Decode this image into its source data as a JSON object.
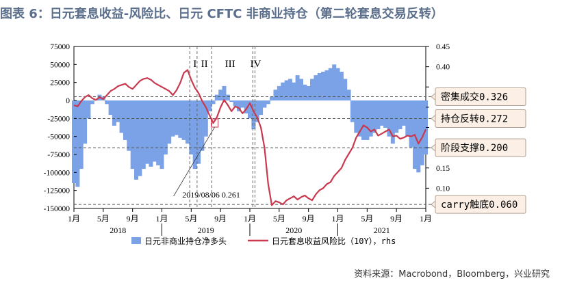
{
  "title": "图表 6：日元套息收益-风险比、日元 CFTC 非商业持仓（第二轮套息交易反转）",
  "source": "资料来源：Macrobond，Bloomberg，兴业研究",
  "colors": {
    "bar": "#7ba2e6",
    "line": "#c8384e",
    "title": "#5b6f8c"
  },
  "chart_data": {
    "type": "bar",
    "title": "图表 6：日元套息收益-风险比、日元 CFTC 非商业持仓（第二轮套息交易反转）",
    "x_tick_labels": [
      "1月",
      "5月",
      "9月",
      "1月",
      "5月",
      "9月",
      "1月",
      "5月",
      "9月",
      "1月",
      "5月",
      "9月",
      "1月"
    ],
    "year_labels": [
      "2018",
      "2019",
      "2020",
      "2021"
    ],
    "ylim_left": [
      -150000,
      75000
    ],
    "ylim_right": [
      0.05,
      0.45
    ],
    "left_ticks": [
      75000,
      50000,
      25000,
      0,
      -25000,
      -50000,
      -75000,
      -100000,
      -125000,
      -150000
    ],
    "left_tick_labels": [
      "75000",
      "50000",
      "25000",
      "0",
      "-25000",
      "-50000",
      "-75000",
      "-100000",
      "-125000",
      "-150000"
    ],
    "right_ticks": [
      0.45,
      0.4,
      0.35,
      0.3,
      0.25,
      0.2,
      0.15,
      0.1
    ],
    "right_tick_labels": [
      "0.45",
      "0.40",
      "",
      "",
      "",
      "",
      "0.15",
      "0.10"
    ],
    "legend": [
      "日元非商业持仓净多头",
      "日元套息收益风险比（10Y），rhs"
    ],
    "phase_labels": [
      "I",
      "II",
      "III",
      "IV"
    ],
    "phase_lines_month": [
      15.8,
      16.8,
      18.8,
      24.4,
      24.7
    ],
    "phase_label_month": [
      16.5,
      17.8,
      21.3,
      24.8
    ],
    "thresholds": [
      {
        "label": "密集成交0.326",
        "value": 0.326
      },
      {
        "label": "持仓反转0.272",
        "value": 0.272
      },
      {
        "label": "阶段支撑0.200",
        "value": 0.2
      },
      {
        "label": "carry触底0.060",
        "value": 0.06
      }
    ],
    "annotation": {
      "text": "2019/08/06  0.261",
      "month": 19.2,
      "value": 0.261
    },
    "series": [
      {
        "name": "日元非商业持仓净多头",
        "unit": "contracts",
        "axis": "left",
        "month": [
          0,
          0.5,
          1,
          1.5,
          2,
          2.5,
          3,
          3.5,
          4,
          4.5,
          5,
          5.5,
          6,
          6.5,
          7,
          7.5,
          8,
          8.5,
          9,
          9.5,
          10,
          10.5,
          11,
          11.5,
          12,
          12.5,
          13,
          13.5,
          14,
          14.5,
          15,
          15.5,
          16,
          16.5,
          17,
          17.5,
          18,
          18.5,
          19,
          19.5,
          20,
          20.5,
          21,
          21.5,
          22,
          22.5,
          23,
          23.5,
          24,
          24.5,
          25,
          25.5,
          26,
          26.5,
          27,
          27.5,
          28,
          28.5,
          29,
          29.5,
          30,
          30.5,
          31,
          31.5,
          32,
          32.5,
          33,
          33.5,
          34,
          34.5,
          35,
          35.5,
          36,
          36.5,
          37,
          37.5,
          38,
          38.5,
          39,
          39.5,
          40,
          40.5,
          41,
          41.5,
          42,
          42.5,
          43,
          43.5,
          44,
          44.5,
          45,
          45.5,
          46,
          46.5,
          47,
          47.5,
          48
        ],
        "values": [
          -115000,
          -120000,
          -95000,
          -60000,
          -25000,
          -5000,
          2000,
          8000,
          5000,
          -5000,
          -20000,
          -35000,
          -30000,
          -45000,
          -55000,
          -70000,
          -95000,
          -110000,
          -105000,
          -95000,
          -88000,
          -92000,
          -85000,
          -90000,
          -95000,
          -75000,
          -60000,
          -50000,
          -48000,
          -52000,
          -55000,
          -60000,
          -75000,
          -95000,
          -88000,
          -70000,
          -50000,
          -15000,
          -5000,
          8000,
          15000,
          20000,
          8000,
          -2000,
          -8000,
          -15000,
          -10000,
          -18000,
          -25000,
          -40000,
          -30000,
          -20000,
          -10000,
          -5000,
          5000,
          15000,
          20000,
          25000,
          28000,
          30000,
          25000,
          35000,
          30000,
          22000,
          20000,
          30000,
          35000,
          38000,
          40000,
          42000,
          45000,
          50000,
          45000,
          40000,
          30000,
          15000,
          -30000,
          -45000,
          -50000,
          -55000,
          -55000,
          -50000,
          -45000,
          -40000,
          -35000,
          -38000,
          -50000,
          -60000,
          -45000,
          -40000,
          -35000,
          -50000,
          -65000,
          -95000,
          -100000,
          -90000,
          -75000
        ]
      },
      {
        "name": "日元套息收益风险比（10Y），rhs",
        "axis": "right",
        "month": [
          0,
          0.5,
          1,
          1.5,
          2,
          2.5,
          3,
          3.5,
          4,
          4.5,
          5,
          5.5,
          6,
          6.5,
          7,
          7.5,
          8,
          8.5,
          9,
          9.5,
          10,
          10.5,
          11,
          11.5,
          12,
          12.5,
          13,
          13.5,
          14,
          14.5,
          15,
          15.5,
          16,
          16.5,
          17,
          17.5,
          18,
          18.5,
          19,
          19.5,
          20,
          20.5,
          21,
          21.5,
          22,
          22.5,
          23,
          23.5,
          24,
          24.5,
          25,
          25.5,
          26,
          26.5,
          27,
          27.5,
          28,
          28.5,
          29,
          29.5,
          30,
          30.5,
          31,
          31.5,
          32,
          32.5,
          33,
          33.5,
          34,
          34.5,
          35,
          35.5,
          36,
          36.5,
          37,
          37.5,
          38,
          38.5,
          39,
          39.5,
          40,
          40.5,
          41,
          41.5,
          42,
          42.5,
          43,
          43.5,
          44,
          44.5,
          45,
          45.5,
          46,
          46.5,
          47,
          47.5,
          48
        ],
        "values": [
          0.305,
          0.302,
          0.315,
          0.325,
          0.33,
          0.322,
          0.318,
          0.325,
          0.32,
          0.33,
          0.34,
          0.345,
          0.352,
          0.355,
          0.358,
          0.35,
          0.345,
          0.355,
          0.365,
          0.37,
          0.372,
          0.368,
          0.36,
          0.355,
          0.35,
          0.345,
          0.34,
          0.33,
          0.342,
          0.36,
          0.385,
          0.392,
          0.368,
          0.348,
          0.335,
          0.315,
          0.3,
          0.28,
          0.261,
          0.275,
          0.3,
          0.318,
          0.305,
          0.29,
          0.302,
          0.298,
          0.285,
          0.295,
          0.31,
          0.29,
          0.275,
          0.25,
          0.2,
          0.11,
          0.058,
          0.068,
          0.065,
          0.06,
          0.07,
          0.075,
          0.08,
          0.072,
          0.078,
          0.082,
          0.075,
          0.07,
          0.085,
          0.095,
          0.1,
          0.11,
          0.115,
          0.13,
          0.14,
          0.15,
          0.17,
          0.185,
          0.2,
          0.225,
          0.24,
          0.255,
          0.25,
          0.24,
          0.245,
          0.23,
          0.235,
          0.24,
          0.245,
          0.228,
          0.23,
          0.222,
          0.225,
          0.23,
          0.228,
          0.232,
          0.21,
          0.225,
          0.245
        ]
      }
    ]
  }
}
